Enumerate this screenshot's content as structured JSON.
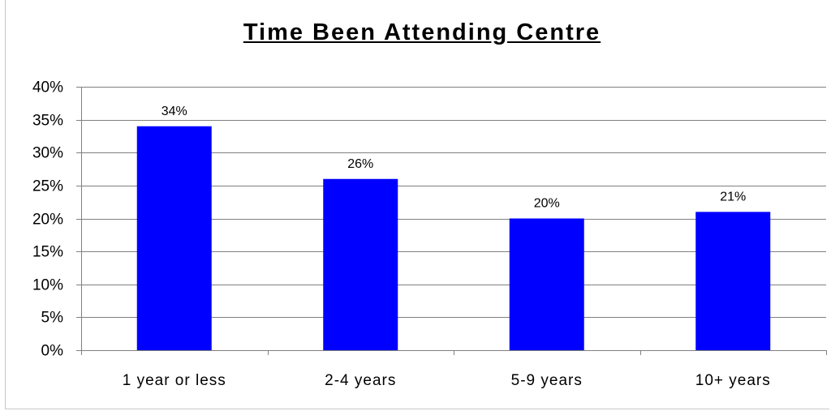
{
  "chart_data": {
    "type": "bar",
    "title": "Time Been Attending Centre",
    "xlabel": "",
    "ylabel": "",
    "categories": [
      "1 year or less",
      "2-4 years",
      "5-9 years",
      "10+ years"
    ],
    "values": [
      34,
      26,
      20,
      21
    ],
    "data_labels": [
      "34%",
      "26%",
      "20%",
      "21%"
    ],
    "ylim": [
      0,
      40
    ],
    "yticks": [
      0,
      5,
      10,
      15,
      20,
      25,
      30,
      35,
      40
    ],
    "ytick_labels": [
      "0%",
      "5%",
      "10%",
      "15%",
      "20%",
      "25%",
      "30%",
      "35%",
      "40%"
    ],
    "grid": true,
    "legend": "none",
    "bar_color": "#0000FF",
    "grid_color": "#808080"
  }
}
